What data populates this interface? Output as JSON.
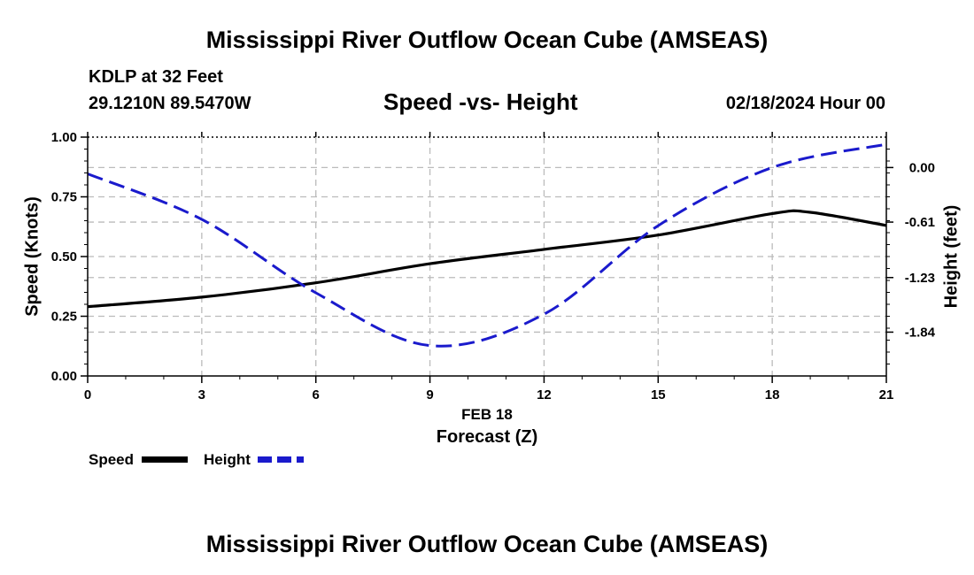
{
  "header": {
    "title_top": "Mississippi River Outflow Ocean Cube (AMSEAS)",
    "station": "KDLP at 32 Feet",
    "coords": "29.1210N  89.5470W",
    "subtitle": "Speed -vs- Height",
    "datetime": "02/18/2024 Hour 00",
    "title_bottom": "Mississippi River Outflow Ocean Cube (AMSEAS)"
  },
  "legend": {
    "speed_label": "Speed",
    "height_label": "Height"
  },
  "colors": {
    "speed": "#000000",
    "height": "#1a1acc",
    "grid": "#bbbbbb"
  },
  "chart_data": {
    "type": "line",
    "title": "Speed -vs- Height",
    "xlabel": "Forecast (Z)",
    "xlabel_date": "FEB 18",
    "ylabel_left": "Speed (Knots)",
    "ylabel_right": "Height (feet)",
    "xlim": [
      0,
      21
    ],
    "ylim_left": [
      0,
      1
    ],
    "ylim_right": [
      -2.33,
      0.34
    ],
    "x_ticks": [
      "0",
      "3",
      "6",
      "9",
      "12",
      "15",
      "18",
      "21"
    ],
    "y_left_ticks": [
      "0.00",
      "0.25",
      "0.50",
      "0.75",
      "1.00"
    ],
    "y_right_ticks": [
      "0.00",
      "-0.61",
      "-1.23",
      "-1.84"
    ],
    "y_right_tick_values": [
      0.0,
      -0.61,
      -1.23,
      -1.84
    ],
    "grid": true,
    "series": [
      {
        "name": "Speed",
        "axis": "left",
        "style": "solid",
        "x": [
          0,
          3,
          6,
          9,
          12,
          15,
          18,
          19,
          21
        ],
        "values": [
          0.29,
          0.33,
          0.39,
          0.47,
          0.53,
          0.59,
          0.68,
          0.685,
          0.63
        ]
      },
      {
        "name": "Height",
        "axis": "right",
        "style": "dashed",
        "x": [
          0,
          3,
          6,
          9,
          12,
          15,
          18,
          21
        ],
        "values": [
          -0.07,
          -0.58,
          -1.4,
          -1.99,
          -1.64,
          -0.65,
          0.0,
          0.26
        ]
      }
    ]
  }
}
